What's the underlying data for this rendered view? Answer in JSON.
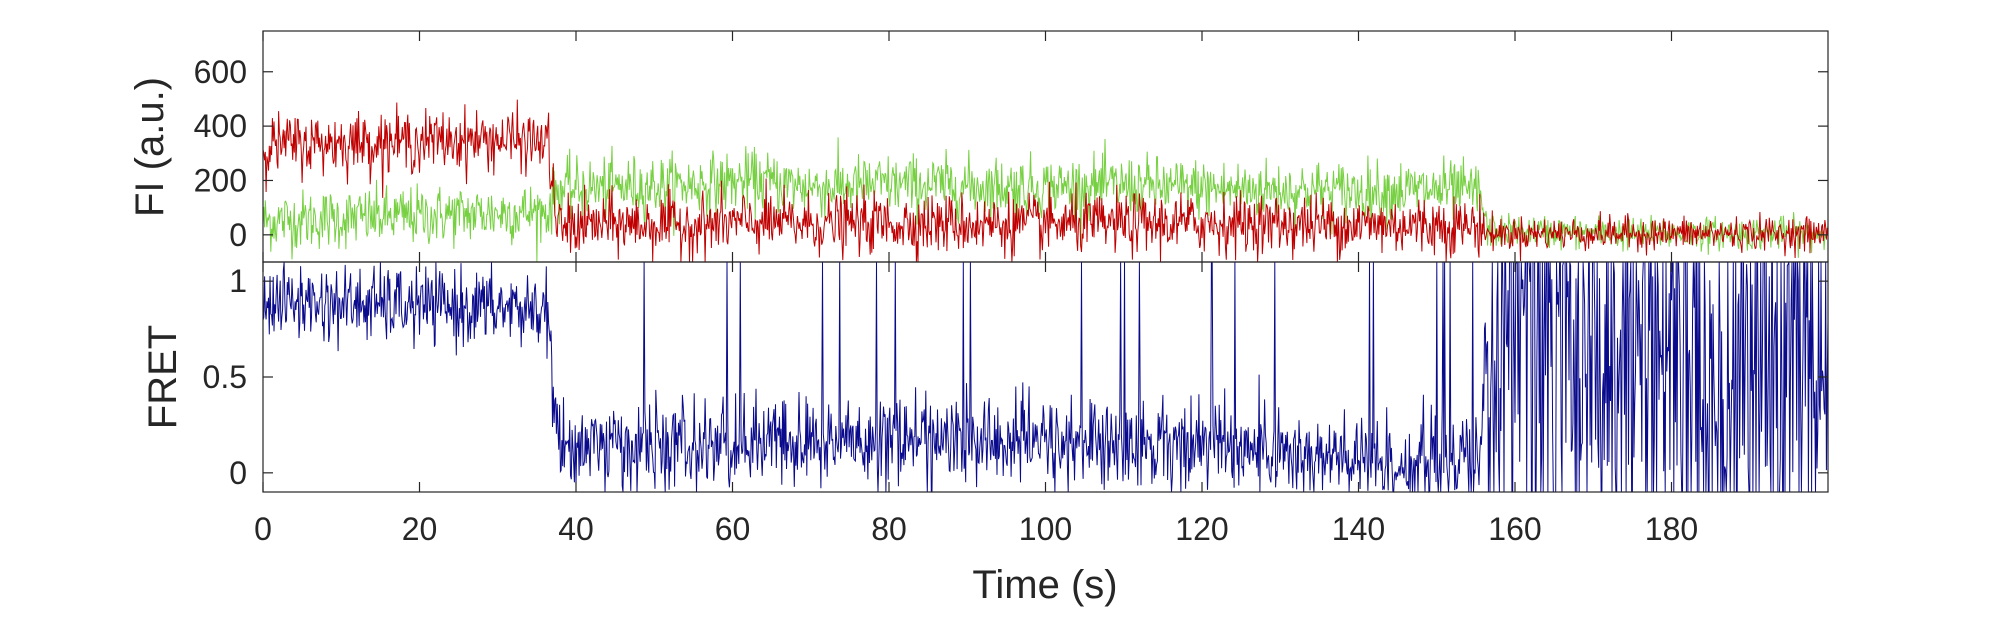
{
  "chart_data": [
    {
      "type": "line",
      "name": "fluorescence-panel",
      "title": "",
      "xlabel": "",
      "ylabel": "FI (a.u.)",
      "xlim": [
        0,
        200
      ],
      "ylim": [
        -100,
        750
      ],
      "yticks": [
        0,
        200,
        400,
        600
      ],
      "yticklabels": [
        "0",
        "200",
        "400",
        "600"
      ],
      "grid": false,
      "series": [
        {
          "name": "",
          "color": "#77d042",
          "x": [
            0,
            10,
            20,
            30,
            36.5,
            37.5,
            45,
            55,
            63,
            70,
            80,
            90,
            100,
            110,
            120,
            130,
            140,
            150,
            155.5,
            156.5,
            165,
            175,
            185,
            195,
            200
          ],
          "y": [
            50,
            60,
            70,
            80,
            85,
            165,
            175,
            185,
            200,
            175,
            185,
            180,
            175,
            180,
            170,
            165,
            160,
            165,
            155,
            15,
            10,
            5,
            5,
            5,
            5
          ]
        },
        {
          "name": "",
          "color": "#c00000",
          "x": [
            0,
            10,
            20,
            30,
            36.5,
            37.5,
            45,
            55,
            63,
            70,
            80,
            90,
            100,
            110,
            120,
            130,
            140,
            150,
            155.5,
            156.5,
            165,
            175,
            185,
            195,
            200
          ],
          "y": [
            330,
            340,
            345,
            350,
            340,
            30,
            40,
            35,
            45,
            40,
            42,
            40,
            38,
            40,
            42,
            40,
            38,
            35,
            32,
            5,
            5,
            5,
            5,
            5,
            5
          ]
        }
      ]
    },
    {
      "type": "line",
      "name": "fret-panel",
      "title": "",
      "xlabel": "Time (s)",
      "ylabel": "FRET",
      "xlim": [
        0,
        200
      ],
      "ylim": [
        -0.1,
        1.1
      ],
      "xticks": [
        0,
        20,
        40,
        60,
        80,
        100,
        120,
        140,
        160,
        180
      ],
      "xticklabels": [
        "0",
        "20",
        "40",
        "60",
        "80",
        "100",
        "120",
        "140",
        "160",
        "180"
      ],
      "yticks": [
        0,
        0.5,
        1
      ],
      "yticklabels": [
        "0",
        "0.5",
        "1"
      ],
      "grid": false,
      "series": [
        {
          "name": "",
          "color": "#0a0a8c",
          "x": [
            0,
            10,
            20,
            30,
            36.5,
            37.5,
            45,
            55,
            63,
            70,
            80,
            90,
            100,
            110,
            120,
            130,
            140,
            150,
            155.5,
            156.5,
            165,
            175,
            185,
            195,
            200
          ],
          "y": [
            0.9,
            0.88,
            0.87,
            0.86,
            0.85,
            0.15,
            0.14,
            0.13,
            0.16,
            0.15,
            0.18,
            0.17,
            0.16,
            0.15,
            0.16,
            0.1,
            0.05,
            0.05,
            0.05,
            0.5,
            0.5,
            0.5,
            0.5,
            0.5,
            0.5
          ]
        }
      ]
    }
  ]
}
